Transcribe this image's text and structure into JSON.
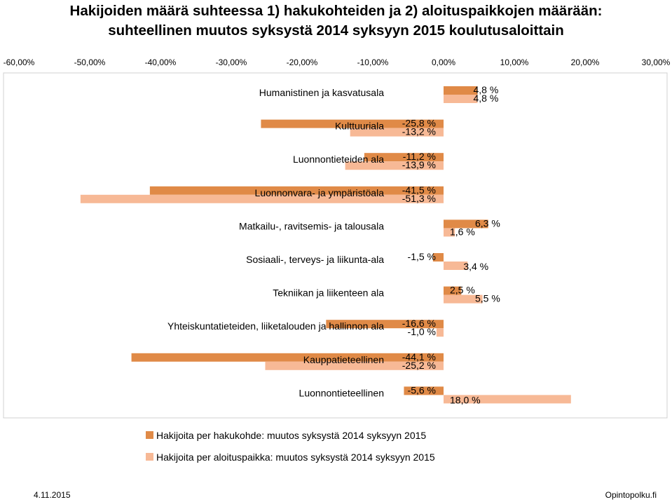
{
  "title_line1": "Hakijoiden määrä suhteessa 1) hakukohteiden ja 2) aloituspaikkojen määrään:",
  "title_line2": "suhteellinen muutos  syksystä 2014 syksyyn 2015 koulutusaloittain",
  "footer_date": "4.11.2015",
  "footer_source": "Opintopolku.fi",
  "colors": {
    "series1": "#e08a47",
    "series2": "#f7b996"
  },
  "chart_data": {
    "type": "bar",
    "orientation": "horizontal",
    "xlim": [
      -60,
      30
    ],
    "x_ticks": [
      "-60,00%",
      "-50,00%",
      "-40,00%",
      "-30,00%",
      "-20,00%",
      "-10,00%",
      "0,00%",
      "10,00%",
      "20,00%",
      "30,00%"
    ],
    "x_tick_values": [
      -60,
      -50,
      -40,
      -30,
      -20,
      -10,
      0,
      10,
      20,
      30
    ],
    "grid": false,
    "legend_position": "bottom",
    "categories": [
      "Humanistinen ja kasvatusala",
      "Kulttuuriala",
      "Luonnontieteiden ala",
      "Luonnonvara- ja ympäristöala",
      "Matkailu-, ravitsemis- ja talousala",
      "Sosiaali-, terveys- ja liikunta-ala",
      "Tekniikan ja liikenteen ala",
      "Yhteiskuntatieteiden, liiketalouden ja hallinnon ala",
      "Kauppatieteellinen",
      "Luonnontieteellinen"
    ],
    "series": [
      {
        "name": "Hakijoita per hakukohde: muutos syksystä 2014 syksyyn 2015",
        "color": "#e08a47",
        "values": [
          4.8,
          -25.8,
          -11.2,
          -41.5,
          6.3,
          -1.5,
          2.5,
          -16.6,
          -44.1,
          -5.6
        ],
        "labels": [
          "4,8 %",
          "-25,8 %",
          "-11,2 %",
          "-41,5 %",
          "6,3 %",
          "-1,5 %",
          "2,5 %",
          "-16,6 %",
          "-44,1 %",
          "-5,6 %"
        ]
      },
      {
        "name": "Hakijoita per aloituspaikka: muutos syksystä 2014 syksyyn 2015",
        "color": "#f7b996",
        "values": [
          4.8,
          -13.2,
          -13.9,
          -51.3,
          1.6,
          3.4,
          5.5,
          -1.0,
          -25.2,
          18.0
        ],
        "labels": [
          "4,8 %",
          "-13,2 %",
          "-13,9 %",
          "-51,3 %",
          "1,6 %",
          "3,4 %",
          "5,5 %",
          "-1,0 %",
          "-25,2 %",
          "18,0 %"
        ]
      }
    ]
  }
}
